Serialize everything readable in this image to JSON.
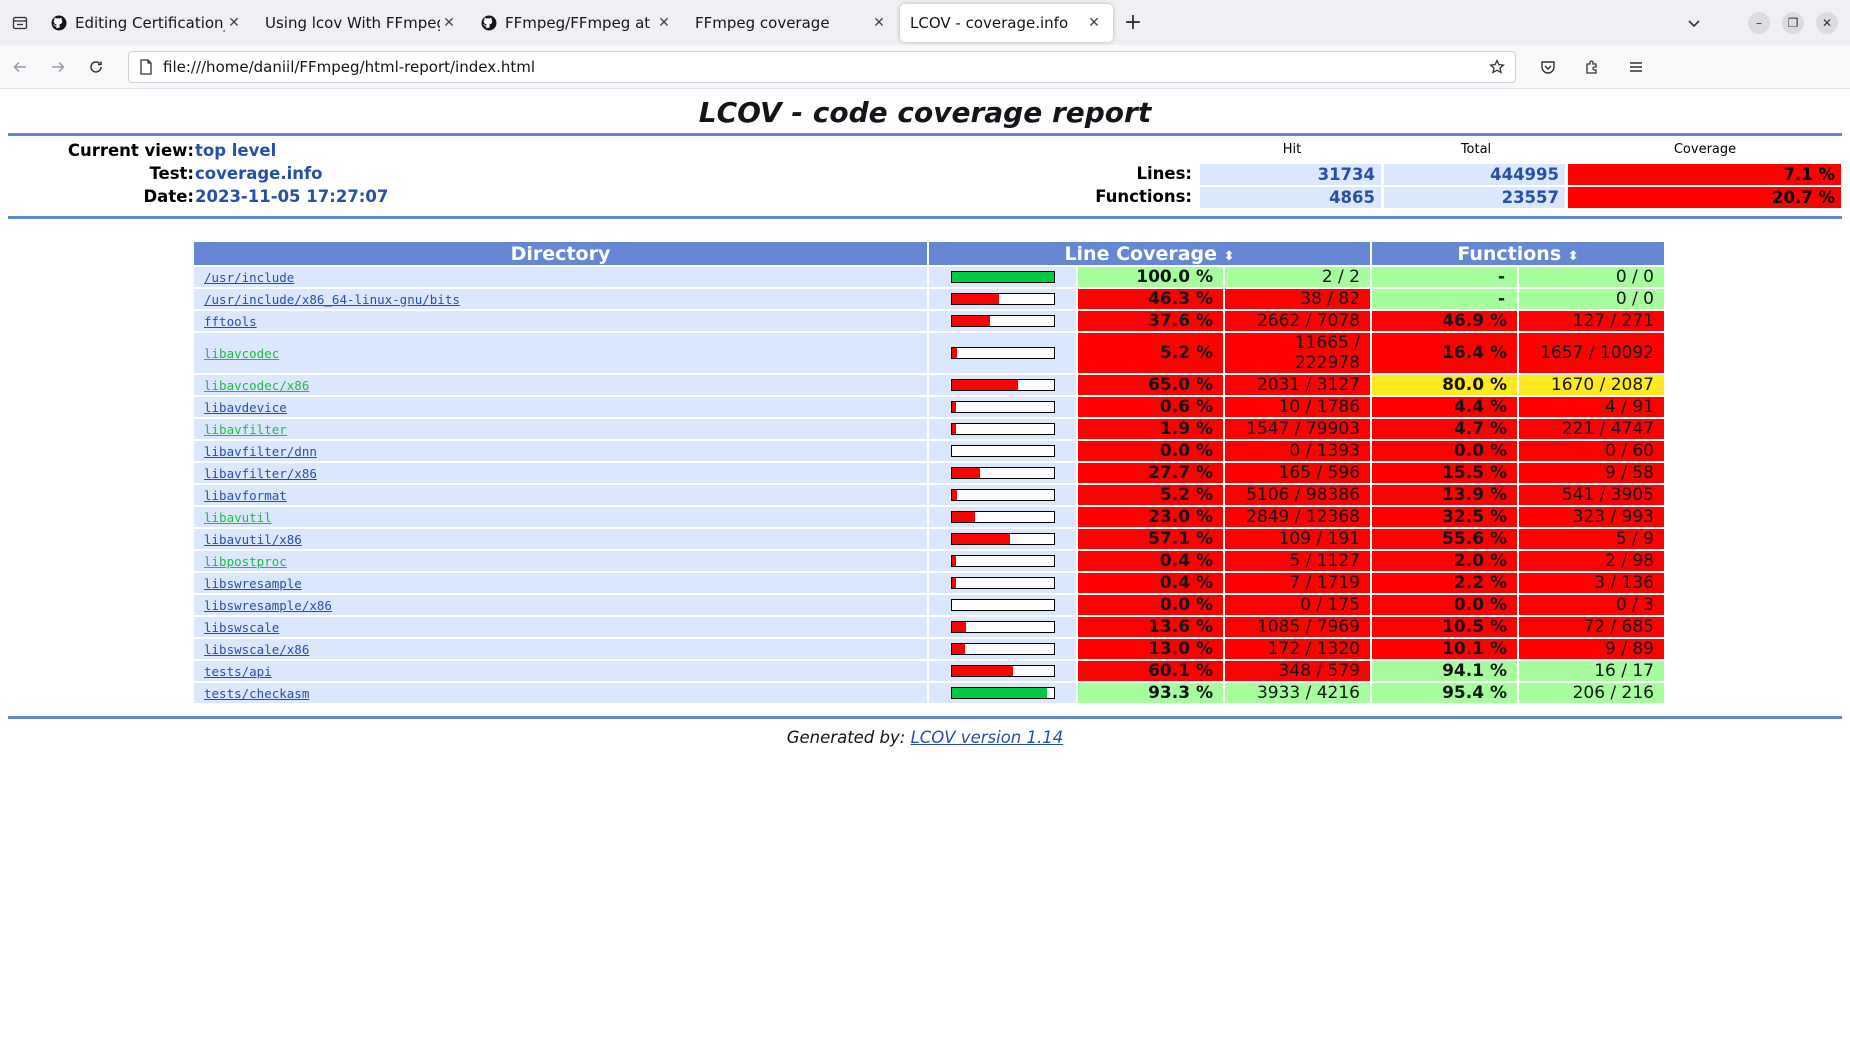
{
  "browser": {
    "tabs": [
      {
        "title": "Editing Certification_LR/",
        "icon": "github-icon",
        "active": false
      },
      {
        "title": "Using lcov With FFmpeg/Lib",
        "icon": "",
        "active": false
      },
      {
        "title": "FFmpeg/FFmpeg at relea",
        "icon": "github-icon",
        "active": false
      },
      {
        "title": "FFmpeg coverage",
        "icon": "",
        "active": false
      },
      {
        "title": "LCOV - coverage.info",
        "icon": "",
        "active": true
      }
    ],
    "url": "file:///home/daniil/FFmpeg/html-report/index.html"
  },
  "report": {
    "title": "LCOV - code coverage report",
    "header": {
      "current_view_label": "Current view:",
      "current_view_value": "top level",
      "test_label": "Test:",
      "test_value": "coverage.info",
      "date_label": "Date:",
      "date_value": "2023-11-05 17:27:07"
    },
    "summary": {
      "col_hit": "Hit",
      "col_total": "Total",
      "col_coverage": "Coverage",
      "lines_label": "Lines:",
      "lines_hit": "31734",
      "lines_total": "444995",
      "lines_cov": "7.1 %",
      "functions_label": "Functions:",
      "functions_hit": "4865",
      "functions_total": "23557",
      "functions_cov": "20.7 %"
    },
    "table": {
      "col_directory": "Directory",
      "col_line_coverage": "Line Coverage",
      "col_functions": "Functions",
      "rows": [
        {
          "dir": "/usr/include",
          "link": "lo",
          "bar": 1.0,
          "bar_color": "green",
          "lpct": "100.0 %",
          "lnum": "2 / 2",
          "lclass": "green",
          "fpct": "-",
          "fnum": "0 / 0",
          "fclass": "green"
        },
        {
          "dir": "/usr/include/x86_64-linux-gnu/bits",
          "link": "lo",
          "bar": 0.463,
          "bar_color": "red",
          "lpct": "46.3 %",
          "lnum": "38 / 82",
          "lclass": "red",
          "fpct": "-",
          "fnum": "0 / 0",
          "fclass": "green"
        },
        {
          "dir": "fftools",
          "link": "lo",
          "bar": 0.376,
          "bar_color": "red",
          "lpct": "37.6 %",
          "lnum": "2662 / 7078",
          "lclass": "red",
          "fpct": "46.9 %",
          "fnum": "127 / 271",
          "fclass": "red"
        },
        {
          "dir": "libavcodec",
          "link": "hi",
          "bar": 0.052,
          "bar_color": "red",
          "lpct": "5.2 %",
          "lnum": "11665 / 222978",
          "lclass": "red",
          "fpct": "16.4 %",
          "fnum": "1657 / 10092",
          "fclass": "red"
        },
        {
          "dir": "libavcodec/x86",
          "link": "hi",
          "bar": 0.65,
          "bar_color": "red",
          "lpct": "65.0 %",
          "lnum": "2031 / 3127",
          "lclass": "red",
          "fpct": "80.0 %",
          "fnum": "1670 / 2087",
          "fclass": "yellow"
        },
        {
          "dir": "libavdevice",
          "link": "lo",
          "bar": 0.006,
          "bar_color": "red",
          "lpct": "0.6 %",
          "lnum": "10 / 1786",
          "lclass": "red",
          "fpct": "4.4 %",
          "fnum": "4 / 91",
          "fclass": "red"
        },
        {
          "dir": "libavfilter",
          "link": "hi",
          "bar": 0.019,
          "bar_color": "red",
          "lpct": "1.9 %",
          "lnum": "1547 / 79903",
          "lclass": "red",
          "fpct": "4.7 %",
          "fnum": "221 / 4747",
          "fclass": "red"
        },
        {
          "dir": "libavfilter/dnn",
          "link": "lo",
          "bar": 0.0,
          "bar_color": "red",
          "lpct": "0.0 %",
          "lnum": "0 / 1393",
          "lclass": "red",
          "fpct": "0.0 %",
          "fnum": "0 / 60",
          "fclass": "red"
        },
        {
          "dir": "libavfilter/x86",
          "link": "lo",
          "bar": 0.277,
          "bar_color": "red",
          "lpct": "27.7 %",
          "lnum": "165 / 596",
          "lclass": "red",
          "fpct": "15.5 %",
          "fnum": "9 / 58",
          "fclass": "red"
        },
        {
          "dir": "libavformat",
          "link": "lo",
          "bar": 0.052,
          "bar_color": "red",
          "lpct": "5.2 %",
          "lnum": "5106 / 98386",
          "lclass": "red",
          "fpct": "13.9 %",
          "fnum": "541 / 3905",
          "fclass": "red"
        },
        {
          "dir": "libavutil",
          "link": "hi",
          "bar": 0.23,
          "bar_color": "red",
          "lpct": "23.0 %",
          "lnum": "2849 / 12368",
          "lclass": "red",
          "fpct": "32.5 %",
          "fnum": "323 / 993",
          "fclass": "red"
        },
        {
          "dir": "libavutil/x86",
          "link": "lo",
          "bar": 0.571,
          "bar_color": "red",
          "lpct": "57.1 %",
          "lnum": "109 / 191",
          "lclass": "red",
          "fpct": "55.6 %",
          "fnum": "5 / 9",
          "fclass": "red"
        },
        {
          "dir": "libpostproc",
          "link": "hi",
          "bar": 0.004,
          "bar_color": "red",
          "lpct": "0.4 %",
          "lnum": "5 / 1127",
          "lclass": "red",
          "fpct": "2.0 %",
          "fnum": "2 / 98",
          "fclass": "red"
        },
        {
          "dir": "libswresample",
          "link": "lo",
          "bar": 0.004,
          "bar_color": "red",
          "lpct": "0.4 %",
          "lnum": "7 / 1719",
          "lclass": "red",
          "fpct": "2.2 %",
          "fnum": "3 / 136",
          "fclass": "red"
        },
        {
          "dir": "libswresample/x86",
          "link": "lo",
          "bar": 0.0,
          "bar_color": "red",
          "lpct": "0.0 %",
          "lnum": "0 / 175",
          "lclass": "red",
          "fpct": "0.0 %",
          "fnum": "0 / 3",
          "fclass": "red"
        },
        {
          "dir": "libswscale",
          "link": "lo",
          "bar": 0.136,
          "bar_color": "red",
          "lpct": "13.6 %",
          "lnum": "1085 / 7969",
          "lclass": "red",
          "fpct": "10.5 %",
          "fnum": "72 / 685",
          "fclass": "red"
        },
        {
          "dir": "libswscale/x86",
          "link": "lo",
          "bar": 0.13,
          "bar_color": "red",
          "lpct": "13.0 %",
          "lnum": "172 / 1320",
          "lclass": "red",
          "fpct": "10.1 %",
          "fnum": "9 / 89",
          "fclass": "red"
        },
        {
          "dir": "tests/api",
          "link": "lo",
          "bar": 0.601,
          "bar_color": "red",
          "lpct": "60.1 %",
          "lnum": "348 / 579",
          "lclass": "red",
          "fpct": "94.1 %",
          "fnum": "16 / 17",
          "fclass": "green"
        },
        {
          "dir": "tests/checkasm",
          "link": "lo",
          "bar": 0.933,
          "bar_color": "green",
          "lpct": "93.3 %",
          "lnum": "3933 / 4216",
          "lclass": "green",
          "fpct": "95.4 %",
          "fnum": "206 / 216",
          "fclass": "green"
        }
      ]
    },
    "footer": {
      "generated_by": "Generated by:",
      "lcov_version": "LCOV version 1.14"
    }
  },
  "colors": {
    "header_blue": "#6688d4",
    "row_bg": "#dae7fe",
    "low": "#ff0000",
    "med": "#ffea20",
    "high": "#a7fc9d",
    "bar_red": "#ff0000",
    "bar_green": "#00cb40"
  }
}
